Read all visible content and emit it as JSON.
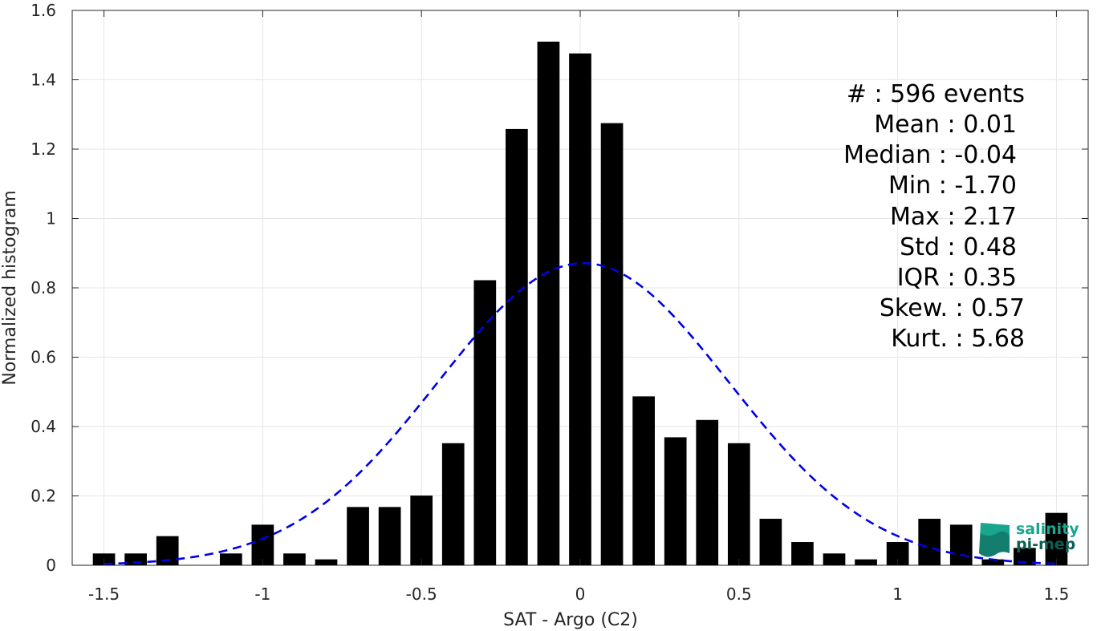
{
  "chart_data": {
    "type": "bar",
    "xlabel": "SAT - Argo (C2)",
    "ylabel": "Normalized histogram",
    "xlim": [
      -1.6,
      1.6
    ],
    "ylim": [
      0,
      1.6
    ],
    "xticks": [
      -1.5,
      -1,
      -0.5,
      0,
      0.5,
      1,
      1.5
    ],
    "xtick_labels": [
      "-1.5",
      "-1",
      "-0.5",
      "0",
      "0.5",
      "1",
      "1.5"
    ],
    "yticks": [
      0,
      0.2,
      0.4,
      0.6,
      0.8,
      1,
      1.2,
      1.4,
      1.6
    ],
    "ytick_labels": [
      "0",
      "0.2",
      "0.4",
      "0.6",
      "0.8",
      "1",
      "1.2",
      "1.4",
      "1.6"
    ],
    "grid": true,
    "bar_width": 0.07,
    "bar_color": "#000000",
    "bars": [
      {
        "x": -1.5,
        "y": 0.034
      },
      {
        "x": -1.4,
        "y": 0.034
      },
      {
        "x": -1.3,
        "y": 0.084
      },
      {
        "x": -1.1,
        "y": 0.034
      },
      {
        "x": -1.0,
        "y": 0.117
      },
      {
        "x": -0.9,
        "y": 0.034
      },
      {
        "x": -0.8,
        "y": 0.017
      },
      {
        "x": -0.7,
        "y": 0.168
      },
      {
        "x": -0.6,
        "y": 0.168
      },
      {
        "x": -0.5,
        "y": 0.201
      },
      {
        "x": -0.4,
        "y": 0.352
      },
      {
        "x": -0.3,
        "y": 0.822
      },
      {
        "x": -0.2,
        "y": 1.258
      },
      {
        "x": -0.1,
        "y": 1.51
      },
      {
        "x": 0.0,
        "y": 1.476
      },
      {
        "x": 0.1,
        "y": 1.275
      },
      {
        "x": 0.2,
        "y": 0.487
      },
      {
        "x": 0.3,
        "y": 0.369
      },
      {
        "x": 0.4,
        "y": 0.419
      },
      {
        "x": 0.5,
        "y": 0.352
      },
      {
        "x": 0.6,
        "y": 0.134
      },
      {
        "x": 0.7,
        "y": 0.067
      },
      {
        "x": 0.8,
        "y": 0.034
      },
      {
        "x": 0.9,
        "y": 0.017
      },
      {
        "x": 1.0,
        "y": 0.067
      },
      {
        "x": 1.1,
        "y": 0.134
      },
      {
        "x": 1.2,
        "y": 0.117
      },
      {
        "x": 1.3,
        "y": 0.017
      },
      {
        "x": 1.4,
        "y": 0.05
      },
      {
        "x": 1.5,
        "y": 0.151
      }
    ],
    "fit_curve": {
      "kind": "normal",
      "mean": 0.01,
      "std": 0.458,
      "range": [
        -1.5,
        1.5
      ],
      "color": "#0000e6",
      "style": "dashed"
    }
  },
  "stats": {
    "lines": [
      "#  : 596 events",
      "Mean : 0.01",
      "Median : -0.04",
      "Min : -1.70",
      "Max : 2.17",
      "Std : 0.48",
      "IQR : 0.35",
      "Skew. : 0.57",
      "Kurt. : 5.68"
    ]
  },
  "logo": {
    "line1": "salinity",
    "line2": "pi-mep",
    "colors": [
      "#1aa58f",
      "#0e5e54"
    ]
  }
}
